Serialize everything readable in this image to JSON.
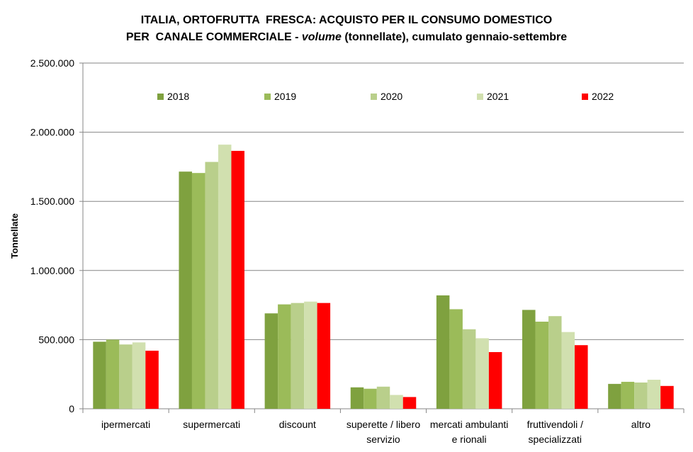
{
  "chart_data": {
    "type": "bar",
    "title_line1": "ITALIA, ORTOFRUTTA  FRESCA: ACQUISTO PER IL CONSUMO DOMESTICO",
    "title_line2_prefix": "PER  CANALE COMMERCIALE - ",
    "title_line2_italic": "volume",
    "title_line2_suffix": " (tonnellate), cumulato gennaio-settembre",
    "ylabel": "Tonnellate",
    "xlabel": "",
    "ylim": [
      0,
      2500000
    ],
    "yticks": [
      0,
      500000,
      1000000,
      1500000,
      2000000,
      2500000
    ],
    "ytick_labels": [
      "0",
      "500.000",
      "1.000.000",
      "1.500.000",
      "2.000.000",
      "2.500.000"
    ],
    "grid": "horizontal",
    "legend_position": "top-inside",
    "categories": [
      [
        "ipermercati"
      ],
      [
        "supermercati"
      ],
      [
        "discount"
      ],
      [
        "superette / libero",
        "servizio"
      ],
      [
        "mercati ambulanti",
        "e rionali"
      ],
      [
        "fruttivendoli /",
        "specializzati"
      ],
      [
        "altro"
      ]
    ],
    "series": [
      {
        "name": "2018",
        "color": "#7fa13f",
        "values": [
          485000,
          1715000,
          690000,
          155000,
          820000,
          715000,
          180000
        ]
      },
      {
        "name": "2019",
        "color": "#9bbb59",
        "values": [
          500000,
          1705000,
          755000,
          145000,
          720000,
          630000,
          195000
        ]
      },
      {
        "name": "2020",
        "color": "#b9cf8b",
        "values": [
          465000,
          1785000,
          765000,
          160000,
          575000,
          670000,
          190000
        ]
      },
      {
        "name": "2021",
        "color": "#d1e0af",
        "values": [
          480000,
          1910000,
          775000,
          100000,
          510000,
          555000,
          210000
        ]
      },
      {
        "name": "2022",
        "color": "#ff0000",
        "values": [
          420000,
          1865000,
          765000,
          85000,
          410000,
          460000,
          165000
        ]
      }
    ]
  }
}
